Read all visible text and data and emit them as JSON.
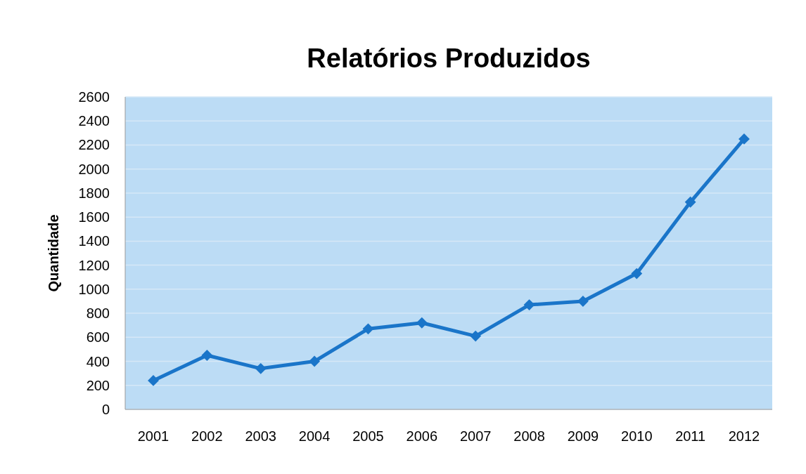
{
  "chart_data": {
    "type": "line",
    "title": "Relatórios  Produzidos",
    "ylabel": "Quantidade",
    "categories": [
      "2001",
      "2002",
      "2003",
      "2004",
      "2005",
      "2006",
      "2007",
      "2008",
      "2009",
      "2010",
      "2011",
      "2012"
    ],
    "series": [
      {
        "color": "#1a75c9",
        "values": [
          240,
          450,
          340,
          400,
          670,
          720,
          610,
          870,
          900,
          1130,
          1725,
          2250
        ]
      }
    ],
    "ylim": [
      0,
      2600
    ],
    "yticks": [
      0,
      200,
      400,
      600,
      800,
      1000,
      1200,
      1400,
      1600,
      1800,
      2000,
      2200,
      2400,
      2600
    ],
    "grid": "y",
    "marker": "diamond",
    "line_style": "solid"
  }
}
